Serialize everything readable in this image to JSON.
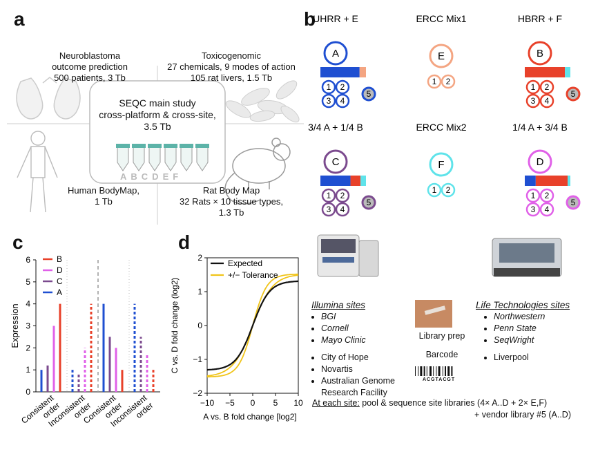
{
  "panel_a": {
    "label": "a",
    "neuro": [
      "Neuroblastoma",
      "outcome prediction",
      "500 patients, 3 Tb"
    ],
    "toxico": [
      "Toxicogenomic",
      "27 chemicals, 9 modes of action",
      "105 rat livers, 1.5 Tb"
    ],
    "main": [
      "SEQC main study",
      "cross-platform & cross-site,",
      "3.5 Tb"
    ],
    "tube_letters": [
      "A",
      "B",
      "C",
      "D",
      "E",
      "F"
    ],
    "bodymap": [
      "Human BodyMap,",
      "1 Tb"
    ],
    "ratmap": [
      "Rat Body Map",
      "32 Rats × 10 tissue types,",
      "1.3 Tb"
    ]
  },
  "panel_b": {
    "label": "b",
    "samples": [
      {
        "title": "UHRR + E",
        "letter": "A",
        "color": "#1f4fd1",
        "bar": [
          0.86,
          0.14
        ],
        "bar_colors": [
          "#1f4fd1",
          "#f4a582"
        ]
      },
      {
        "title": "ERCC Mix1",
        "letter": "E",
        "color": "#f4a582"
      },
      {
        "title": "HBRR + F",
        "letter": "B",
        "color": "#e8412a",
        "bar": [
          0.88,
          0.12
        ],
        "bar_colors": [
          "#e8412a",
          "#5fe3ea"
        ]
      },
      {
        "title": "3/4 A + 1/4 B",
        "letter": "C",
        "color": "#7b4a8e",
        "bar": [
          0.66,
          0.22,
          0.12
        ],
        "bar_colors": [
          "#1f4fd1",
          "#e8412a",
          "#5fe3ea"
        ]
      },
      {
        "title": "ERCC Mix2",
        "letter": "F",
        "color": "#5fe3ea"
      },
      {
        "title": "1/4 A + 3/4 B",
        "letter": "D",
        "color": "#e060e8",
        "bar": [
          0.24,
          0.7,
          0.06
        ],
        "bar_colors": [
          "#1f4fd1",
          "#e8412a",
          "#5fe3ea"
        ]
      }
    ],
    "small_circles": [
      "1",
      "2",
      "3",
      "4",
      "5"
    ]
  },
  "panel_c": {
    "label": "c",
    "chart_data": {
      "type": "bar",
      "ylabel": "Expression",
      "ylim": [
        0,
        6
      ],
      "yticks": [
        "0",
        "1",
        "2",
        "3",
        "4",
        "5",
        "6"
      ],
      "groups": [
        {
          "label": [
            "Consistent",
            "order"
          ],
          "values": {
            "A": 1,
            "C": 1.2,
            "D": 3,
            "B": 4
          }
        },
        {
          "label": [
            "Inconsistent",
            "order"
          ],
          "values": {
            "A": 1,
            "C": 0.8,
            "D": 2,
            "B": 4
          }
        },
        {
          "label": [
            "Consistent",
            "order"
          ],
          "values": {
            "A": 4,
            "C": 2.5,
            "D": 2,
            "B": 1
          }
        },
        {
          "label": [
            "Inconsistent",
            "order"
          ],
          "values": {
            "A": 4,
            "C": 2.5,
            "D": 1.75,
            "B": 1
          }
        }
      ],
      "legend": [
        {
          "name": "B",
          "color": "#e8412a"
        },
        {
          "name": "D",
          "color": "#e060e8"
        },
        {
          "name": "C",
          "color": "#7b4a8e"
        },
        {
          "name": "A",
          "color": "#1f4fd1"
        }
      ]
    }
  },
  "panel_d": {
    "label": "d",
    "chart_data": {
      "type": "line",
      "xlabel": "A vs. B fold change [log2]",
      "ylabel": "C vs. D fold change (log2)",
      "xlim": [
        -10,
        10
      ],
      "ylim": [
        -2,
        2
      ],
      "xticks": [
        "−10",
        "−5",
        "0",
        "5",
        "10"
      ],
      "yticks": [
        "−2",
        "−1",
        "0",
        "1",
        "2"
      ],
      "series": [
        {
          "name": "Expected",
          "color": "#111111"
        },
        {
          "name": "+/− Tolerance",
          "color": "#f0c419"
        }
      ]
    }
  },
  "sites": {
    "illumina_title": "Illumina sites",
    "illumina_italic": [
      "BGI",
      "Cornell",
      "Mayo Clinic"
    ],
    "illumina_plain": [
      "City of Hope",
      "Novartis",
      "Australian Genome Research Facility"
    ],
    "life_title": "Life Technologies sites",
    "life_italic": [
      "Northwestern",
      "Penn State",
      "SeqWright"
    ],
    "life_plain": [
      "Liverpool"
    ],
    "library_prep": "Library prep",
    "barcode": "Barcode",
    "barcode_seq": "ACGTACGT",
    "at_each_site": "At each site:",
    "pool_text": "pool & sequence site libraries (4× A..D + 2× E,F)",
    "vendor_text": "+ vendor library #5 (A..D)"
  }
}
